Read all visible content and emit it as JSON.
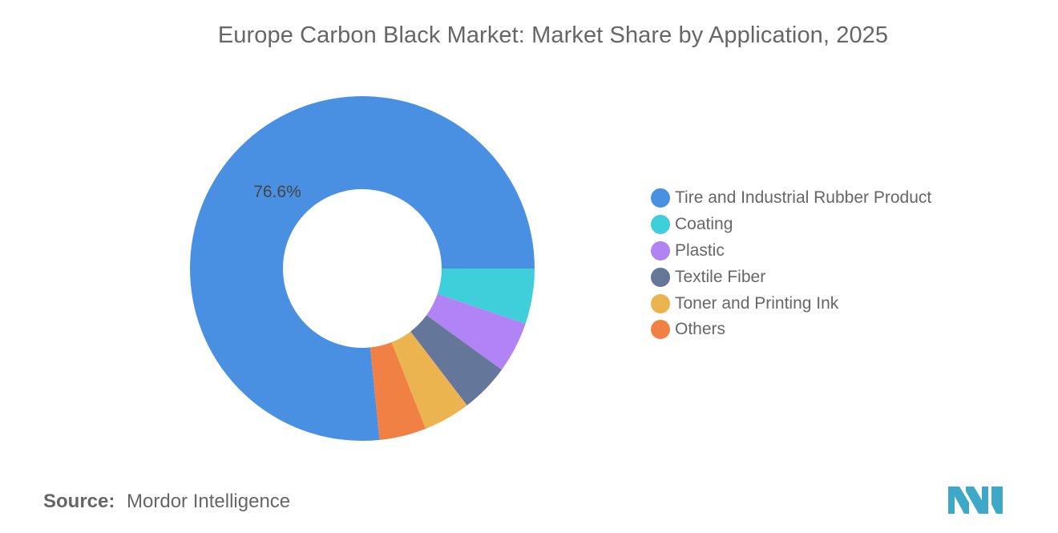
{
  "title": "Europe Carbon Black Market: Market Share by Application, 2025",
  "chart_data": {
    "type": "pie",
    "donut": true,
    "title": "Europe Carbon Black Market: Market Share by Application, 2025",
    "unit": "%",
    "categories": [
      "Tire and Industrial Rubber Product",
      "Coating",
      "Plastic",
      "Textile Fiber",
      "Toner and Printing Ink",
      "Others"
    ],
    "values": [
      76.6,
      5.2,
      4.8,
      4.6,
      4.4,
      4.4
    ],
    "colors": [
      "#4a90e2",
      "#3fcfdb",
      "#b084f5",
      "#64769a",
      "#ebb44f",
      "#f08044"
    ],
    "data_labels": [
      {
        "category": "Tire and Industrial Rubber Product",
        "text": "76.6%"
      }
    ],
    "legend_position": "right"
  },
  "source": {
    "label": "Source:",
    "value": "Mordor Intelligence"
  },
  "logo": {
    "icon": "mordor-intelligence-logo-icon",
    "color": "#3ea8c8"
  }
}
